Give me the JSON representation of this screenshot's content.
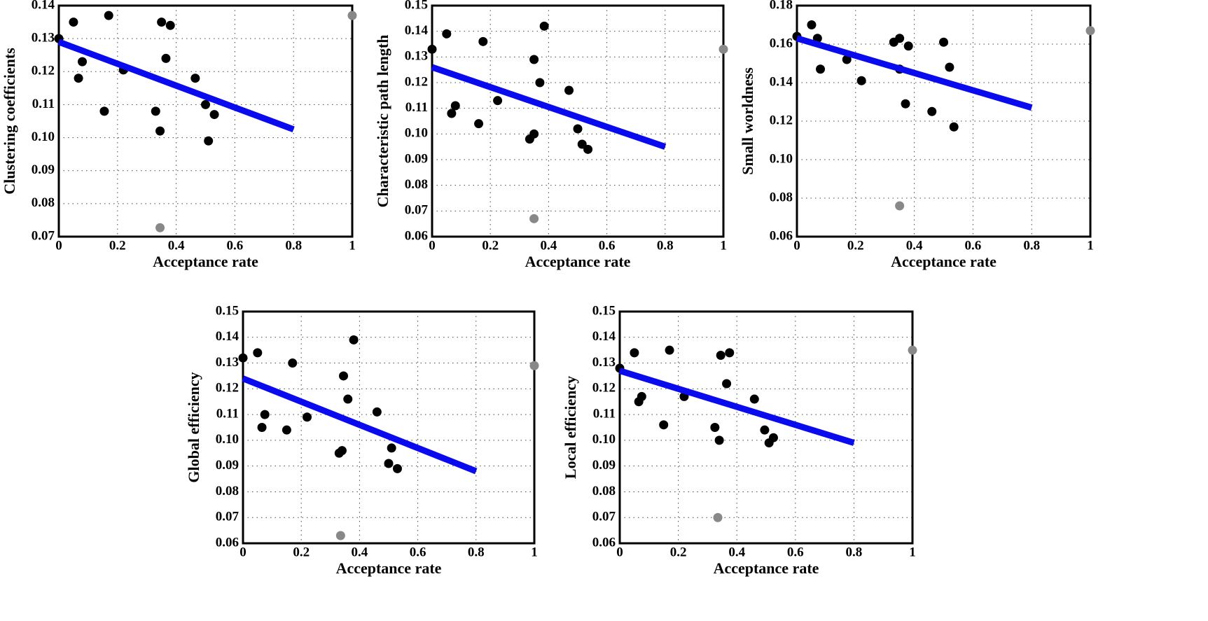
{
  "chart_data": [
    {
      "type": "scatter",
      "xlabel": "Acceptance rate",
      "ylabel": "Clustering coefficients",
      "xlim": [
        0,
        1
      ],
      "xticks": [
        0,
        0.2,
        0.4,
        0.6,
        0.8,
        1
      ],
      "ylim": [
        0.07,
        0.14
      ],
      "yticks": [
        0.07,
        0.08,
        0.09,
        {
          "value": 0.1,
          "label": "0.10"
        },
        0.11,
        0.12,
        0.13,
        0.14
      ],
      "grid": true,
      "series": [
        {
          "color": "#000000",
          "style": "points",
          "x": [
            0,
            0.05,
            0.17,
            0.067,
            0.08,
            0.155,
            0.22,
            0.35,
            0.38,
            0.365,
            0.33,
            0.345,
            0.465,
            0.5,
            0.53,
            0.51
          ],
          "values": [
            0.13,
            0.135,
            0.137,
            0.118,
            0.123,
            0.108,
            0.1205,
            0.135,
            0.134,
            0.124,
            0.108,
            0.102,
            0.118,
            0.11,
            0.107,
            0.099
          ]
        },
        {
          "color": "#888888",
          "style": "points",
          "x": [
            0.345,
            1
          ],
          "values": [
            0.0727,
            0.137
          ]
        },
        {
          "color": "#0a0aee",
          "style": "line",
          "x": [
            0,
            0.8
          ],
          "values": [
            0.129,
            0.1025
          ]
        }
      ]
    },
    {
      "type": "scatter",
      "xlabel": "Acceptance rate",
      "ylabel": "Characteristic path length",
      "xlim": [
        0,
        1
      ],
      "xticks": [
        0,
        0.2,
        0.4,
        0.6,
        0.8,
        1
      ],
      "ylim": [
        0.06,
        0.15
      ],
      "yticks": [
        0.06,
        0.07,
        0.08,
        0.09,
        {
          "value": 0.1,
          "label": "0.10"
        },
        0.11,
        0.12,
        0.13,
        0.14,
        0.15
      ],
      "grid": true,
      "series": [
        {
          "color": "#000000",
          "style": "points",
          "x": [
            0,
            0.05,
            0.175,
            0.067,
            0.08,
            0.16,
            0.225,
            0.385,
            0.35,
            0.37,
            0.335,
            0.35,
            0.47,
            0.5,
            0.515,
            0.535
          ],
          "values": [
            0.133,
            0.139,
            0.136,
            0.108,
            0.111,
            0.104,
            0.113,
            0.142,
            0.129,
            0.12,
            0.098,
            0.1,
            0.117,
            0.102,
            0.096,
            0.094
          ]
        },
        {
          "color": "#888888",
          "style": "points",
          "x": [
            0.35,
            1
          ],
          "values": [
            0.067,
            0.133
          ]
        },
        {
          "color": "#0a0aee",
          "style": "line",
          "x": [
            0,
            0.8
          ],
          "values": [
            0.126,
            0.095
          ]
        }
      ]
    },
    {
      "type": "scatter",
      "xlabel": "Acceptance rate",
      "ylabel": "Small worldness",
      "xlim": [
        0,
        1
      ],
      "xticks": [
        0,
        0.2,
        0.4,
        0.6,
        0.8,
        1
      ],
      "ylim": [
        0.06,
        0.18
      ],
      "yticks": [
        0.06,
        0.08,
        {
          "value": 0.1,
          "label": "0.10"
        },
        0.12,
        0.14,
        0.16,
        0.18
      ],
      "grid": true,
      "series": [
        {
          "color": "#000000",
          "style": "points",
          "x": [
            0,
            0.05,
            0.07,
            0.08,
            0.17,
            0.22,
            0.33,
            0.35,
            0.35,
            0.38,
            0.37,
            0.5,
            0.52,
            0.46,
            0.535
          ],
          "values": [
            0.164,
            0.17,
            0.163,
            0.147,
            0.152,
            0.141,
            0.161,
            0.163,
            0.147,
            0.159,
            0.129,
            0.161,
            0.148,
            0.125,
            0.117
          ]
        },
        {
          "color": "#888888",
          "style": "points",
          "x": [
            0.35,
            1
          ],
          "values": [
            0.076,
            0.167
          ]
        },
        {
          "color": "#0a0aee",
          "style": "line",
          "x": [
            0,
            0.8
          ],
          "values": [
            0.163,
            0.127
          ]
        }
      ]
    },
    {
      "type": "scatter",
      "xlabel": "Acceptance rate",
      "ylabel": "Global efficiency",
      "xlim": [
        0,
        1
      ],
      "xticks": [
        0,
        0.2,
        0.4,
        0.6,
        0.8,
        1
      ],
      "ylim": [
        0.06,
        0.15
      ],
      "yticks": [
        0.06,
        0.07,
        0.08,
        0.09,
        {
          "value": 0.1,
          "label": "0.10"
        },
        0.11,
        0.12,
        0.13,
        0.14,
        0.15
      ],
      "grid": true,
      "series": [
        {
          "color": "#000000",
          "style": "points",
          "x": [
            0,
            0.05,
            0.17,
            0.065,
            0.075,
            0.15,
            0.22,
            0.33,
            0.34,
            0.345,
            0.36,
            0.38,
            0.46,
            0.51,
            0.5,
            0.53
          ],
          "values": [
            0.132,
            0.134,
            0.13,
            0.105,
            0.11,
            0.104,
            0.109,
            0.095,
            0.096,
            0.125,
            0.116,
            0.139,
            0.111,
            0.097,
            0.091,
            0.089
          ]
        },
        {
          "color": "#888888",
          "style": "points",
          "x": [
            0.335,
            1
          ],
          "values": [
            0.063,
            0.129
          ]
        },
        {
          "color": "#0a0aee",
          "style": "line",
          "x": [
            0,
            0.8
          ],
          "values": [
            0.124,
            0.088
          ]
        }
      ]
    },
    {
      "type": "scatter",
      "xlabel": "Acceptance rate",
      "ylabel": "Local efficiency",
      "xlim": [
        0,
        1
      ],
      "xticks": [
        0,
        0.2,
        0.4,
        0.6,
        0.8,
        1
      ],
      "ylim": [
        0.06,
        0.15
      ],
      "yticks": [
        0.06,
        0.07,
        0.08,
        0.09,
        {
          "value": 0.1,
          "label": "0.10"
        },
        0.11,
        0.12,
        0.13,
        0.14,
        0.15
      ],
      "grid": true,
      "series": [
        {
          "color": "#000000",
          "style": "points",
          "x": [
            0,
            0.05,
            0.065,
            0.075,
            0.17,
            0.15,
            0.22,
            0.325,
            0.345,
            0.365,
            0.375,
            0.34,
            0.46,
            0.495,
            0.51,
            0.525
          ],
          "values": [
            0.128,
            0.134,
            0.115,
            0.117,
            0.135,
            0.106,
            0.117,
            0.105,
            0.133,
            0.122,
            0.134,
            0.1,
            0.116,
            0.104,
            0.099,
            0.101
          ]
        },
        {
          "color": "#888888",
          "style": "points",
          "x": [
            0.335,
            1
          ],
          "values": [
            0.07,
            0.135
          ]
        },
        {
          "color": "#0a0aee",
          "style": "line",
          "x": [
            0,
            0.8
          ],
          "values": [
            0.127,
            0.099
          ]
        }
      ]
    }
  ]
}
